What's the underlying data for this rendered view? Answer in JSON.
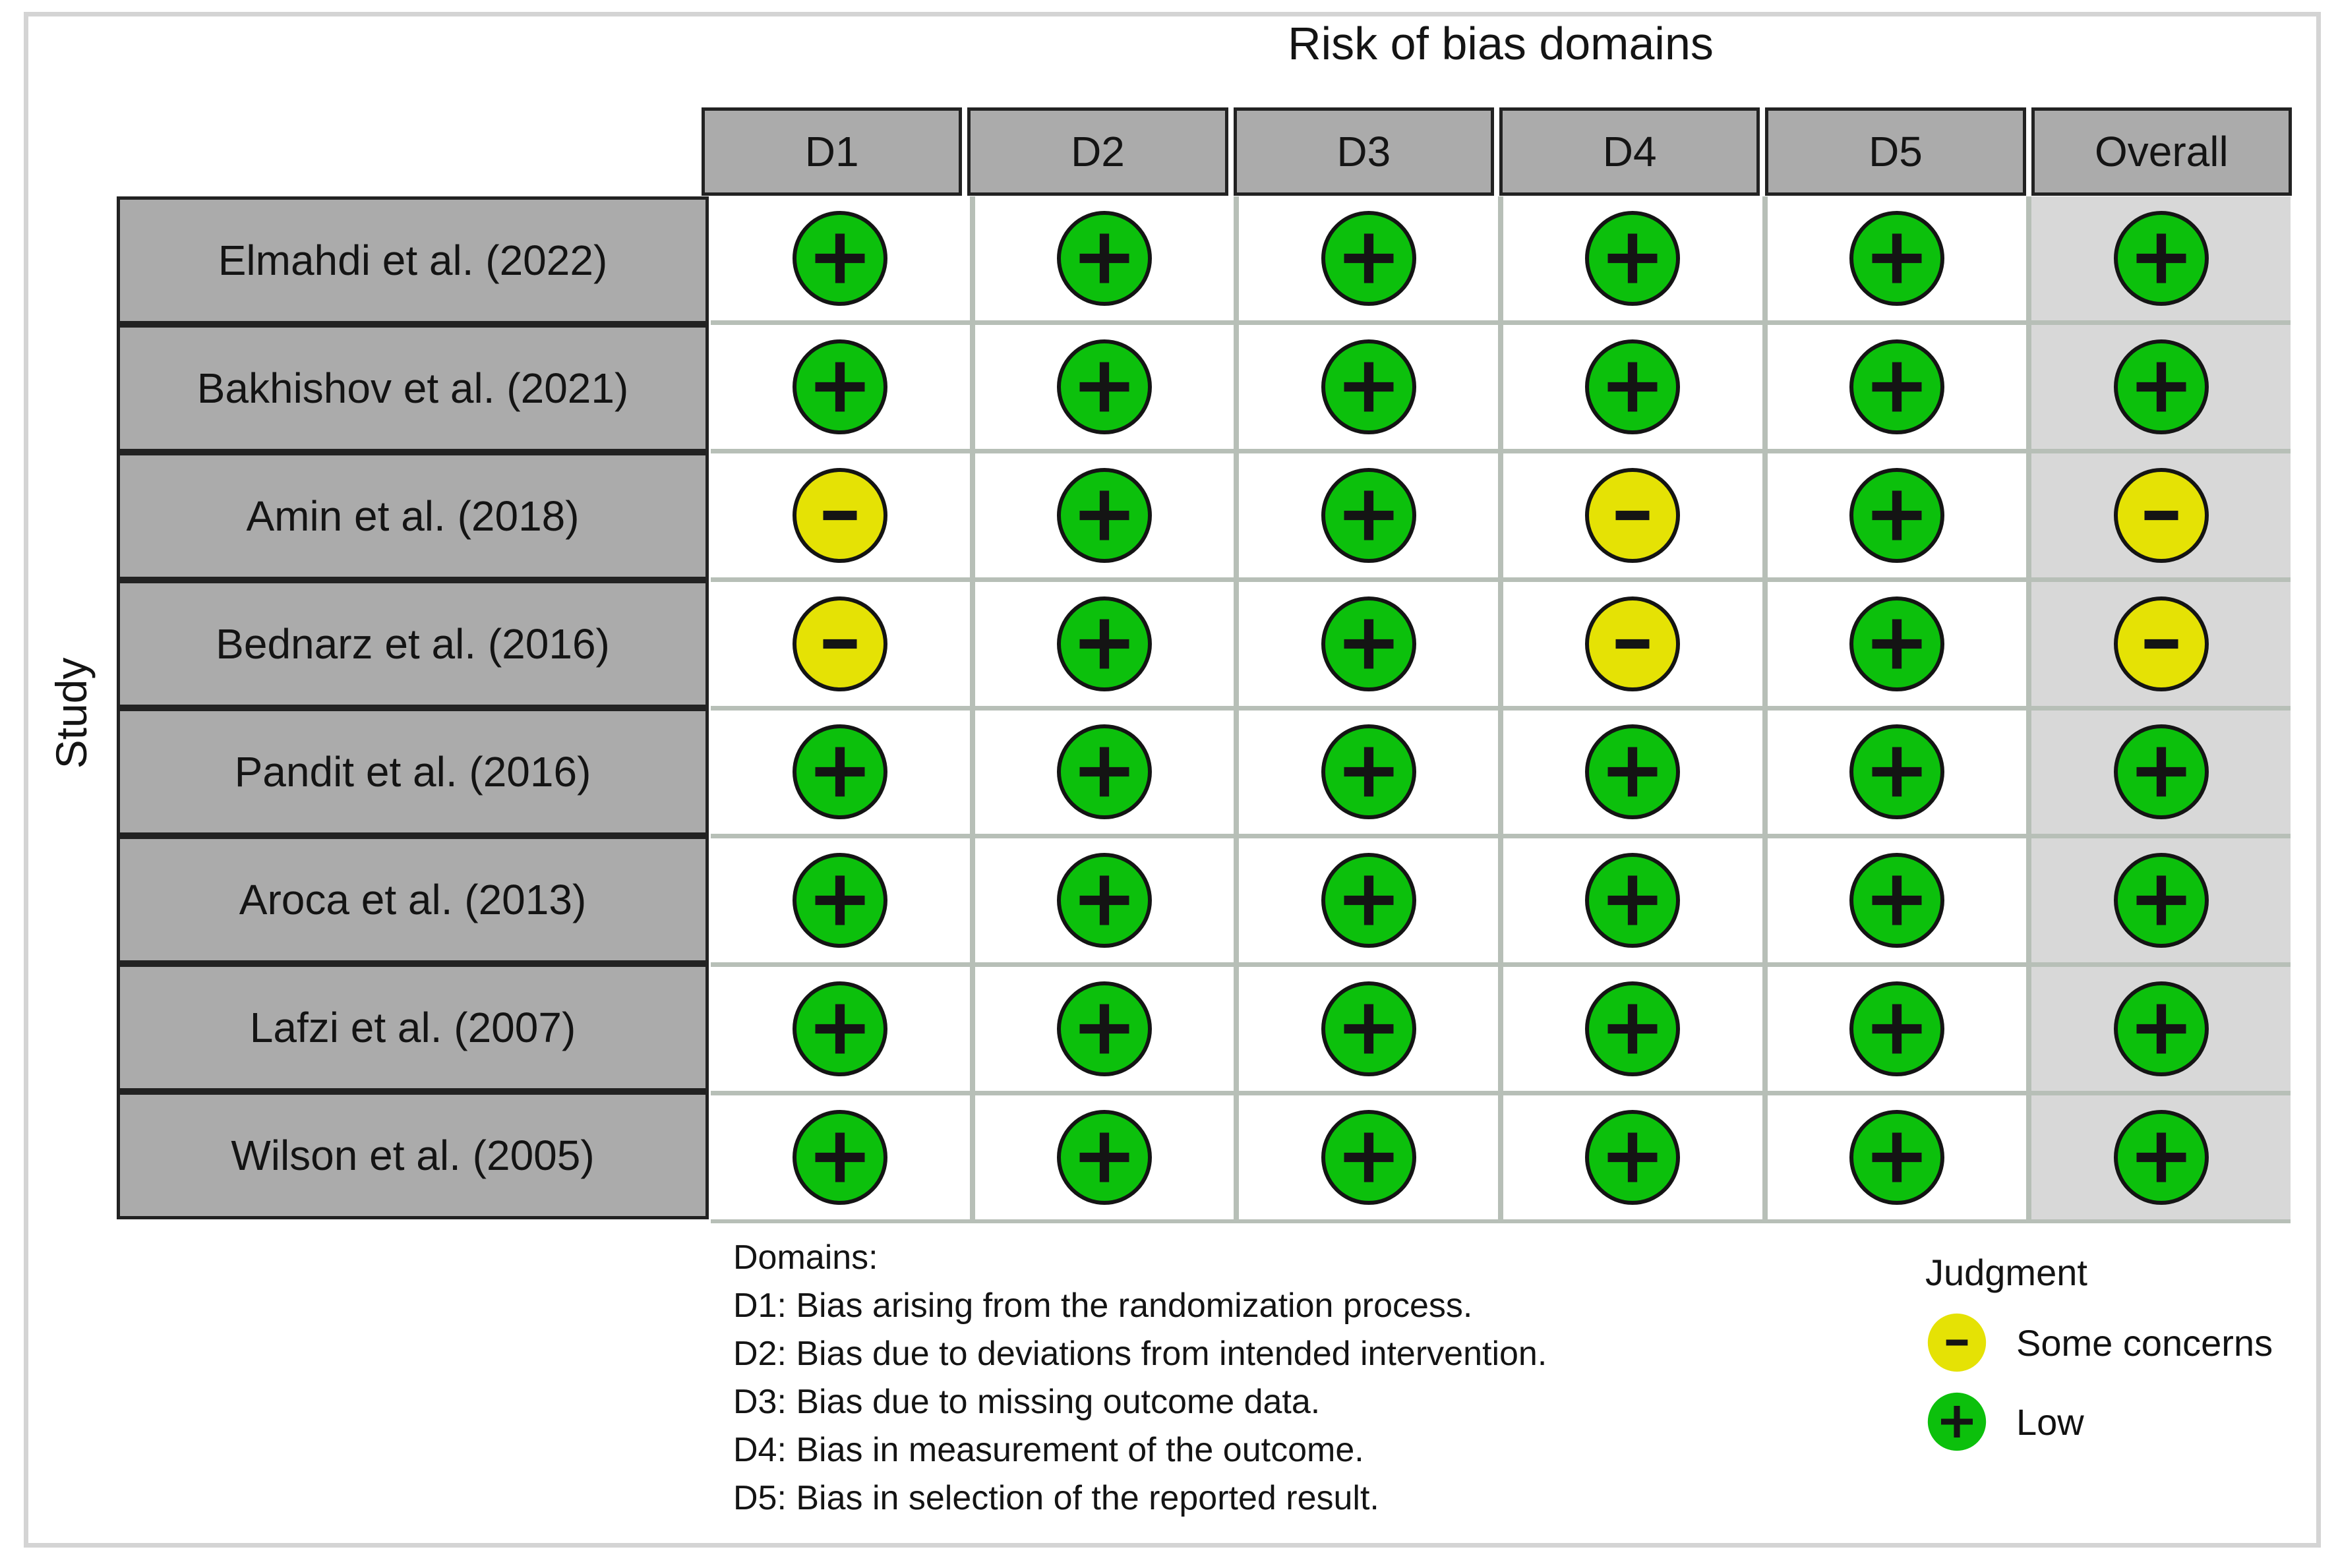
{
  "chart_data": {
    "type": "table",
    "title": "Risk of bias domains",
    "y_axis_label": "Study",
    "columns": [
      "D1",
      "D2",
      "D3",
      "D4",
      "D5",
      "Overall"
    ],
    "rows": [
      {
        "label": "Elmahdi et al. (2022)",
        "judgments": [
          "low",
          "low",
          "low",
          "low",
          "low",
          "low"
        ]
      },
      {
        "label": "Bakhishov et al. (2021)",
        "judgments": [
          "low",
          "low",
          "low",
          "low",
          "low",
          "low"
        ]
      },
      {
        "label": "Amin et al. (2018)",
        "judgments": [
          "some_concerns",
          "low",
          "low",
          "some_concerns",
          "low",
          "some_concerns"
        ]
      },
      {
        "label": "Bednarz et al. (2016)",
        "judgments": [
          "some_concerns",
          "low",
          "low",
          "some_concerns",
          "low",
          "some_concerns"
        ]
      },
      {
        "label": "Pandit et al. (2016)",
        "judgments": [
          "low",
          "low",
          "low",
          "low",
          "low",
          "low"
        ]
      },
      {
        "label": "Aroca et al. (2013)",
        "judgments": [
          "low",
          "low",
          "low",
          "low",
          "low",
          "low"
        ]
      },
      {
        "label": "Lafzi et al. (2007)",
        "judgments": [
          "low",
          "low",
          "low",
          "low",
          "low",
          "low"
        ]
      },
      {
        "label": "Wilson et al. (2005)",
        "judgments": [
          "low",
          "low",
          "low",
          "low",
          "low",
          "low"
        ]
      }
    ],
    "symbols": {
      "low": "+",
      "some_concerns": "-"
    },
    "legend": {
      "title": "Judgment",
      "items": [
        {
          "level": "some_concerns",
          "symbol": "-",
          "label": "Some concerns"
        },
        {
          "level": "low",
          "symbol": "+",
          "label": "Low"
        }
      ]
    },
    "footnote": {
      "heading": "Domains:",
      "lines": [
        "D1: Bias arising from the randomization process.",
        "D2: Bias due to deviations from intended intervention.",
        "D3: Bias due to missing outcome data.",
        "D4: Bias in measurement of the outcome.",
        "D5: Bias in selection of the reported result."
      ]
    }
  },
  "colors": {
    "low": "#0cc00c",
    "some_concerns": "#e5e205",
    "symbol": "#141414",
    "header_bg": "#ababab",
    "overall_bg": "#d8d8d8",
    "grid_line": "#b7bfb7",
    "cell_border": "#222222",
    "frame_border": "#d4d4d4"
  }
}
